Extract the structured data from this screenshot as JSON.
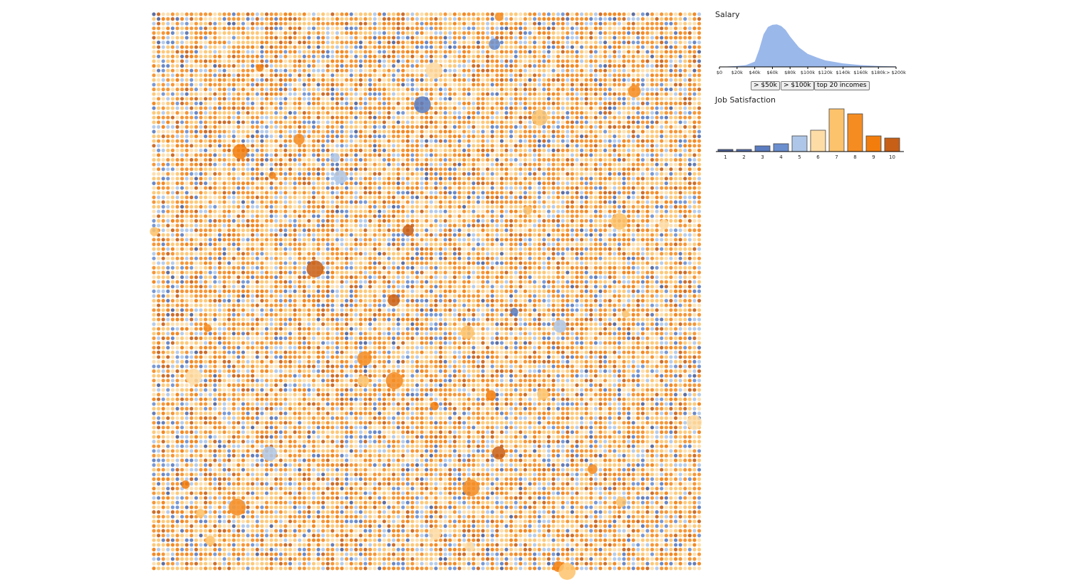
{
  "chart_data": [
    {
      "type": "area",
      "title": "Salary",
      "color": "#9bb8ea",
      "x": [
        0,
        10000,
        20000,
        30000,
        40000,
        45000,
        50000,
        55000,
        60000,
        65000,
        70000,
        75000,
        80000,
        90000,
        100000,
        110000,
        120000,
        140000,
        160000,
        180000,
        200000
      ],
      "values": [
        0,
        1,
        2,
        4,
        12,
        40,
        75,
        92,
        97,
        98,
        94,
        85,
        70,
        45,
        30,
        22,
        15,
        8,
        4,
        2,
        1
      ],
      "xlim": [
        0,
        200000
      ],
      "ylim": [
        0,
        100
      ],
      "xticks": [
        {
          "value": 0,
          "label": "$0"
        },
        {
          "value": 20000,
          "label": "$20k"
        },
        {
          "value": 40000,
          "label": "$40k"
        },
        {
          "value": 60000,
          "label": "$60k"
        },
        {
          "value": 80000,
          "label": "$80k"
        },
        {
          "value": 100000,
          "label": "$100k"
        },
        {
          "value": 120000,
          "label": "$120k"
        },
        {
          "value": 140000,
          "label": "$140k"
        },
        {
          "value": 160000,
          "label": "$160k"
        },
        {
          "value": 180000,
          "label": "$180k"
        },
        {
          "value": 200000,
          "label": "> $200k"
        }
      ],
      "buttons": [
        "> $50k",
        "> $100k",
        "top 20 incomes"
      ]
    },
    {
      "type": "bar",
      "title": "Job Satisfaction",
      "categories": [
        1,
        2,
        3,
        4,
        5,
        6,
        7,
        8,
        9,
        10
      ],
      "values": [
        3,
        3,
        8,
        11,
        22,
        30,
        60,
        53,
        22,
        19
      ],
      "colors": [
        "#4c5f96",
        "#5670ae",
        "#5b7cc0",
        "#6b8fcf",
        "#aec7e8",
        "#fddca6",
        "#fdc36c",
        "#f58c22",
        "#f27d0c",
        "#c85f16"
      ],
      "ylim": [
        0,
        60
      ]
    }
  ]
}
